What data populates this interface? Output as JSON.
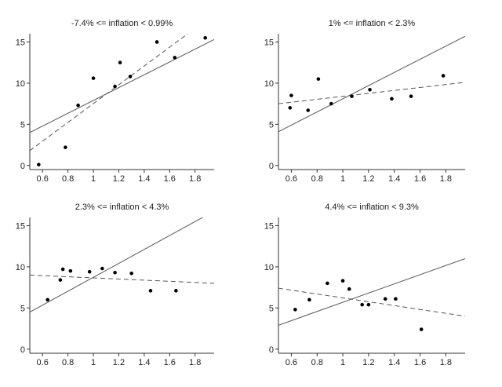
{
  "chart_data": [
    {
      "type": "scatter",
      "title": "-7.4% <= inflation < 0.99%",
      "xlim": [
        0.5,
        1.95
      ],
      "ylim": [
        -0.5,
        16
      ],
      "xticks": [
        "0.6",
        "0.8",
        "1",
        "1.2",
        "1.4",
        "1.6",
        "1.8"
      ],
      "yticks": [
        "0",
        "5",
        "10",
        "15"
      ],
      "points": [
        [
          0.57,
          0.1
        ],
        [
          0.78,
          2.2
        ],
        [
          0.88,
          7.3
        ],
        [
          1.0,
          10.6
        ],
        [
          1.17,
          9.6
        ],
        [
          1.21,
          12.5
        ],
        [
          1.29,
          10.8
        ],
        [
          1.5,
          15.0
        ],
        [
          1.64,
          13.1
        ],
        [
          1.88,
          15.5
        ]
      ],
      "fit_solid": [
        [
          0.5,
          4.0
        ],
        [
          1.95,
          15.3
        ]
      ],
      "fit_dashed": [
        [
          0.5,
          1.8
        ],
        [
          1.76,
          16.2
        ]
      ]
    },
    {
      "type": "scatter",
      "title": "1% <= inflation < 2.3%",
      "xlim": [
        0.5,
        1.95
      ],
      "ylim": [
        -0.5,
        16
      ],
      "xticks": [
        "0.6",
        "0.8",
        "1",
        "1.2",
        "1.4",
        "1.6",
        "1.8"
      ],
      "yticks": [
        "0",
        "5",
        "10",
        "15"
      ],
      "points": [
        [
          0.59,
          7.0
        ],
        [
          0.6,
          8.5
        ],
        [
          0.73,
          6.7
        ],
        [
          0.81,
          10.5
        ],
        [
          0.91,
          7.5
        ],
        [
          1.07,
          8.4
        ],
        [
          1.21,
          9.2
        ],
        [
          1.38,
          8.1
        ],
        [
          1.53,
          8.4
        ],
        [
          1.78,
          10.9
        ]
      ],
      "fit_solid": [
        [
          0.5,
          4.1
        ],
        [
          1.95,
          15.7
        ]
      ],
      "fit_dashed": [
        [
          0.5,
          7.5
        ],
        [
          1.95,
          10.1
        ]
      ]
    },
    {
      "type": "scatter",
      "title": "2.3% <= inflation < 4.3%",
      "xlim": [
        0.5,
        1.95
      ],
      "ylim": [
        -0.5,
        16
      ],
      "xticks": [
        "0.6",
        "0.8",
        "1",
        "1.2",
        "1.4",
        "1.6",
        "1.8"
      ],
      "yticks": [
        "0",
        "5",
        "10",
        "15"
      ],
      "points": [
        [
          0.64,
          6.0
        ],
        [
          0.74,
          8.4
        ],
        [
          0.76,
          9.7
        ],
        [
          0.82,
          9.5
        ],
        [
          0.97,
          9.4
        ],
        [
          1.07,
          9.8
        ],
        [
          1.17,
          9.3
        ],
        [
          1.3,
          9.2
        ],
        [
          1.45,
          7.1
        ],
        [
          1.65,
          7.1
        ]
      ],
      "fit_solid": [
        [
          0.5,
          4.5
        ],
        [
          1.86,
          16.0
        ]
      ],
      "fit_dashed": [
        [
          0.5,
          9.0
        ],
        [
          1.95,
          8.0
        ]
      ]
    },
    {
      "type": "scatter",
      "title": "4.4% <= inflation < 9.3%",
      "xlim": [
        0.5,
        1.95
      ],
      "ylim": [
        -0.5,
        16
      ],
      "xticks": [
        "0.6",
        "0.8",
        "1",
        "1.2",
        "1.4",
        "1.6",
        "1.8"
      ],
      "yticks": [
        "0",
        "5",
        "10",
        "15"
      ],
      "points": [
        [
          0.63,
          4.8
        ],
        [
          0.74,
          6.0
        ],
        [
          0.88,
          8.0
        ],
        [
          1.0,
          8.3
        ],
        [
          1.05,
          7.3
        ],
        [
          1.15,
          5.4
        ],
        [
          1.2,
          5.4
        ],
        [
          1.33,
          6.1
        ],
        [
          1.41,
          6.1
        ],
        [
          1.61,
          2.4
        ]
      ],
      "fit_solid": [
        [
          0.5,
          2.9
        ],
        [
          1.95,
          11.0
        ]
      ],
      "fit_dashed": [
        [
          0.5,
          7.4
        ],
        [
          1.95,
          4.0
        ]
      ]
    }
  ]
}
